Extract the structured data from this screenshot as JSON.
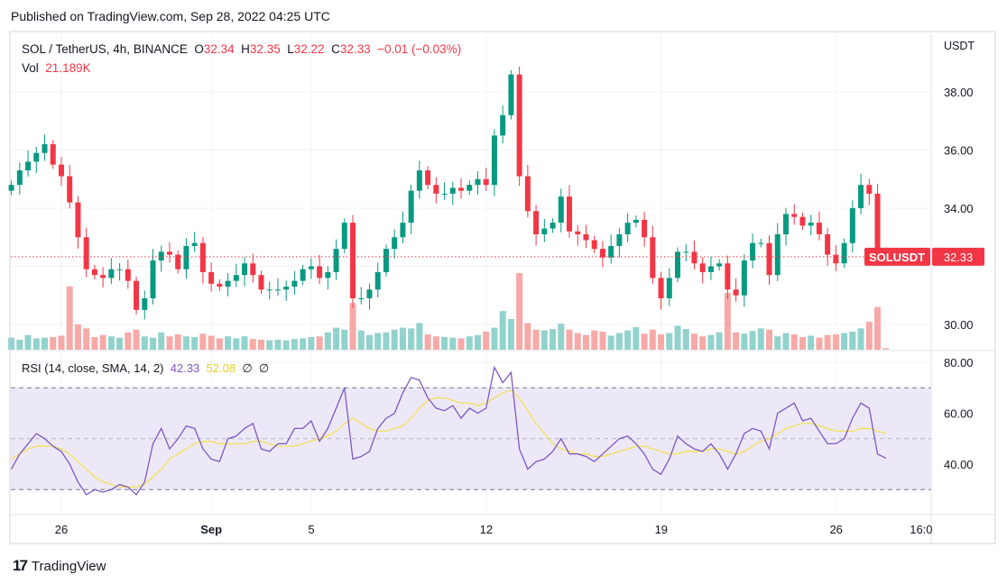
{
  "header": {
    "published": "Published on TradingView.com, Sep 28, 2022 04:25 UTC"
  },
  "legend": {
    "symbol": "SOL / TetherUS, 4h, BINANCE",
    "o_label": "O",
    "o": "32.34",
    "h_label": "H",
    "h": "32.35",
    "l_label": "L",
    "l": "32.22",
    "c_label": "C",
    "c": "32.33",
    "change": "−0.01 (−0.03%)",
    "vol_label": "Vol",
    "vol": "21.189K"
  },
  "rsi_legend": {
    "title": "RSI (14, close, SMA, 14, 2)",
    "rsi": "42.33",
    "sma": "52.08",
    "na1": "∅",
    "na2": "∅"
  },
  "price_axis": {
    "currency": "USDT",
    "symbol_tag": "SOLUSDT",
    "last_price": "32.33"
  },
  "footer": {
    "brand": "TradingView"
  },
  "colors": {
    "up": "#089981",
    "down": "#f23645",
    "vol_up": "#92d2cc",
    "vol_down": "#f7a9a7",
    "rsi": "#7e57c2",
    "sma": "#f5e04a",
    "band": "#ede8f8"
  },
  "chart_data": {
    "type": "candlestick",
    "title": "SOL / TetherUS, 4h, BINANCE",
    "ylabel": "USDT",
    "ylim": [
      29.1,
      39.9
    ],
    "yticks": [
      "30.00",
      "32.00",
      "34.00",
      "36.00",
      "38.00"
    ],
    "ytick_values": [
      30,
      32,
      34,
      36,
      38
    ],
    "xticks": [
      {
        "label": "26",
        "day": 2
      },
      {
        "label": "Sep",
        "day": 8
      },
      {
        "label": "5",
        "day": 12
      },
      {
        "label": "12",
        "day": 19
      },
      {
        "label": "19",
        "day": 26
      },
      {
        "label": "26",
        "day": 33
      },
      {
        "label": "16:0",
        "day": 36.4
      }
    ],
    "x_start": "Aug 24 2022",
    "candle_days": 0.3333,
    "first_open": 34.6,
    "close": [
      34.8,
      35.3,
      35.6,
      35.9,
      36.2,
      35.5,
      35.1,
      34.2,
      33.0,
      31.9,
      31.7,
      31.6,
      31.9,
      31.9,
      31.5,
      30.5,
      30.9,
      32.2,
      32.5,
      32.4,
      31.9,
      32.7,
      32.8,
      31.8,
      31.4,
      31.3,
      31.5,
      31.7,
      32.1,
      31.7,
      31.2,
      31.2,
      31.2,
      31.3,
      31.5,
      31.9,
      32.0,
      31.6,
      31.8,
      32.6,
      33.5,
      30.9,
      30.9,
      31.2,
      31.8,
      32.6,
      33.0,
      33.5,
      34.6,
      35.3,
      34.8,
      34.5,
      34.5,
      34.7,
      34.6,
      34.8,
      35.0,
      34.8,
      36.5,
      37.2,
      38.6,
      35.1,
      33.9,
      33.1,
      33.3,
      33.5,
      34.4,
      33.2,
      33.1,
      32.9,
      32.6,
      32.3,
      32.7,
      33.1,
      33.5,
      33.6,
      33.0,
      31.6,
      30.9,
      31.6,
      32.5,
      32.5,
      32.1,
      31.8,
      32.0,
      32.1,
      31.2,
      31.0,
      32.2,
      32.8,
      32.8,
      31.7,
      33.1,
      33.8,
      33.7,
      33.4,
      33.5,
      33.1,
      32.4,
      32.1,
      32.8,
      34.0,
      34.8,
      34.5,
      32.5,
      32.33
    ],
    "volume_k": [
      180,
      150,
      220,
      170,
      180,
      190,
      210,
      950,
      380,
      320,
      190,
      220,
      200,
      180,
      260,
      300,
      200,
      180,
      260,
      200,
      230,
      200,
      190,
      240,
      210,
      170,
      200,
      170,
      200,
      160,
      150,
      140,
      150,
      140,
      160,
      170,
      190,
      200,
      260,
      330,
      300,
      700,
      290,
      220,
      250,
      260,
      300,
      330,
      320,
      400,
      230,
      200,
      190,
      180,
      170,
      200,
      220,
      270,
      330,
      580,
      460,
      1150,
      400,
      300,
      290,
      310,
      390,
      300,
      250,
      220,
      290,
      270,
      210,
      250,
      290,
      340,
      240,
      300,
      230,
      250,
      360,
      310,
      240,
      200,
      220,
      260,
      850,
      260,
      240,
      280,
      320,
      300,
      200,
      250,
      230,
      190,
      210,
      180,
      220,
      230,
      250,
      270,
      320,
      420,
      640,
      21
    ],
    "rsi": {
      "ylim": [
        22,
        86
      ],
      "yticks": [
        "40.00",
        "60.00",
        "80.00"
      ],
      "ytick_values": [
        40,
        60,
        80
      ],
      "bands": [
        30,
        50,
        70
      ],
      "rsi": [
        38,
        44,
        48,
        52,
        50,
        47,
        45,
        40,
        33,
        28,
        30,
        29,
        30,
        32,
        31,
        28,
        33,
        48,
        54,
        46,
        50,
        55,
        54,
        46,
        42,
        41,
        50,
        51,
        54,
        56,
        46,
        45,
        48,
        48,
        54,
        54,
        57,
        49,
        54,
        62,
        70,
        42,
        43,
        45,
        54,
        58,
        60,
        68,
        74,
        73,
        66,
        62,
        61,
        63,
        58,
        62,
        60,
        62,
        78,
        72,
        76,
        46,
        38,
        41,
        42,
        45,
        50,
        44,
        44,
        43,
        41,
        44,
        47,
        50,
        51,
        48,
        44,
        38,
        36,
        42,
        51,
        48,
        46,
        45,
        48,
        44,
        38,
        44,
        52,
        54,
        53,
        46,
        60,
        62,
        64,
        57,
        58,
        53,
        48,
        48,
        50,
        58,
        64,
        62,
        44,
        42.33
      ],
      "sma": [
        42,
        44,
        46,
        47,
        47,
        47,
        46,
        44,
        41,
        38,
        35,
        33,
        32,
        31,
        31,
        31,
        32,
        35,
        38,
        42,
        44,
        46,
        48,
        49,
        49,
        48,
        48,
        48,
        48,
        49,
        49,
        48,
        47,
        47,
        47,
        48,
        49,
        50,
        51,
        53,
        56,
        58,
        56,
        54,
        53,
        53,
        54,
        55,
        58,
        62,
        65,
        66,
        66,
        65,
        64,
        64,
        63,
        64,
        66,
        68,
        69,
        66,
        61,
        56,
        52,
        48,
        46,
        45,
        44,
        44,
        43,
        43,
        44,
        45,
        46,
        47,
        47,
        46,
        45,
        44,
        44,
        45,
        45,
        45,
        46,
        46,
        45,
        44,
        45,
        47,
        49,
        50,
        52,
        54,
        55,
        56,
        56,
        55,
        54,
        53,
        53,
        53,
        54,
        54,
        53,
        52.08
      ]
    }
  }
}
